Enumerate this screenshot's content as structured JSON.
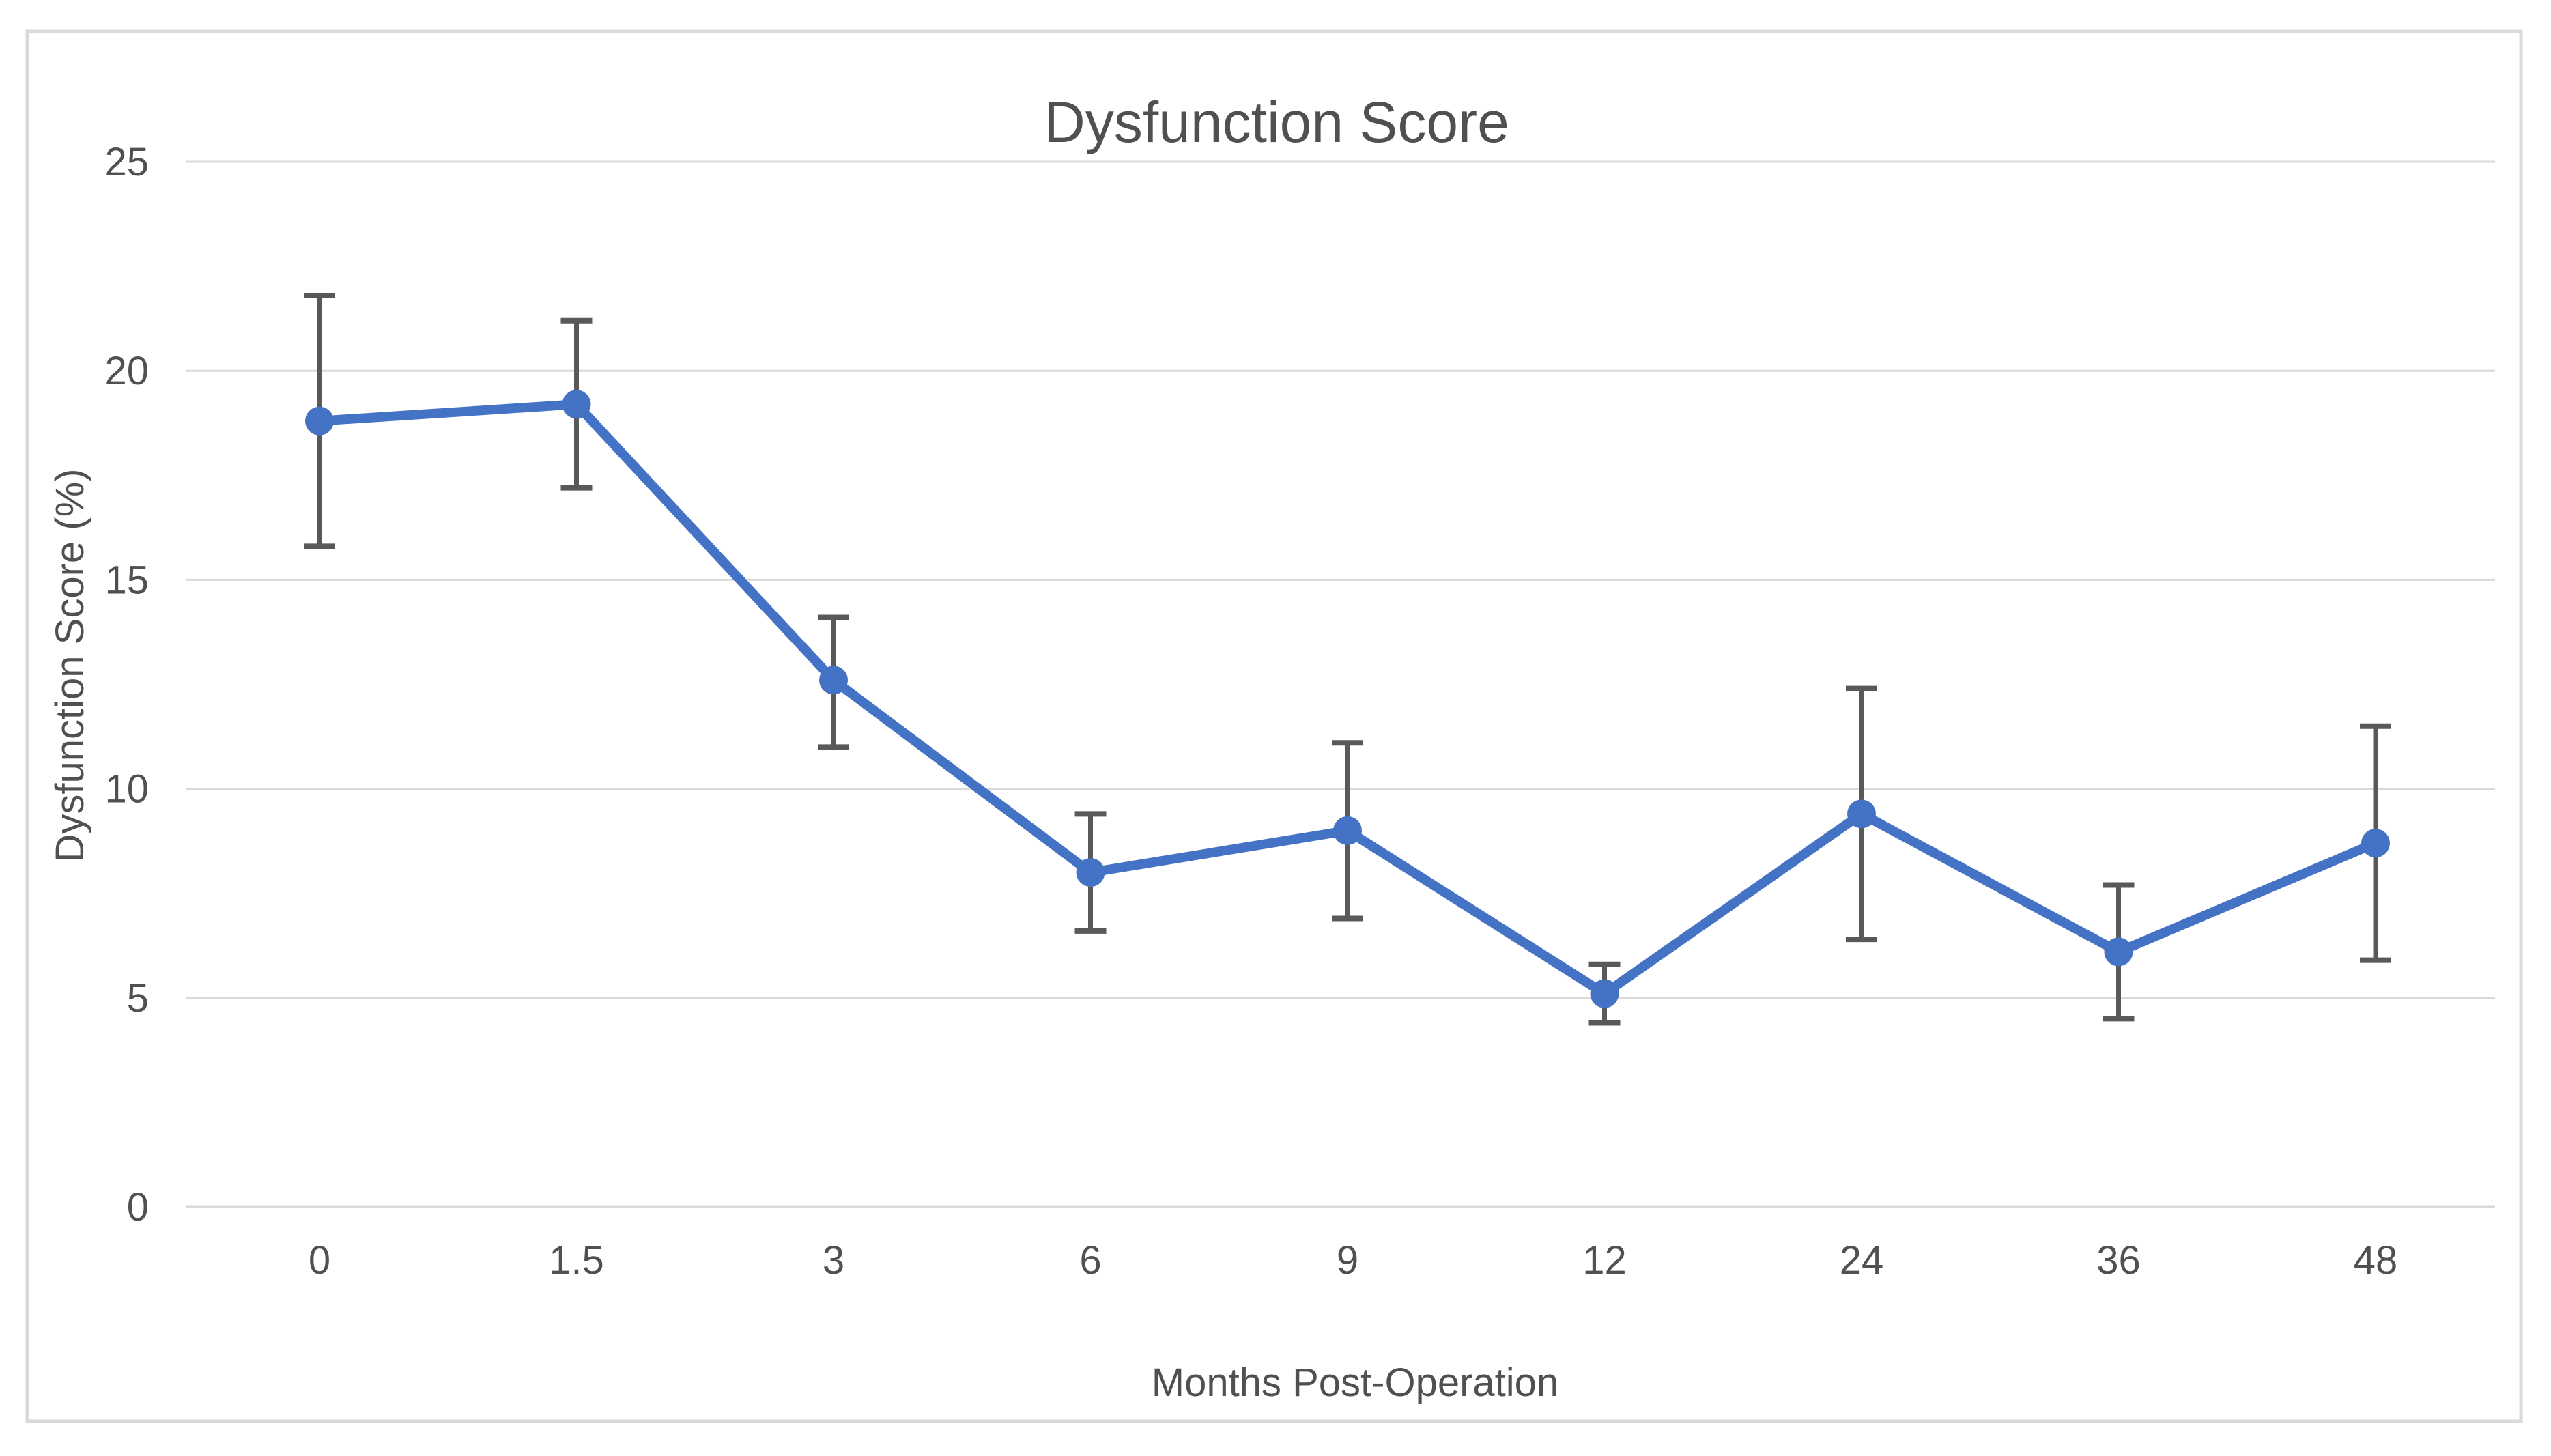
{
  "chart": {
    "title": "Dysfunction Score",
    "x_axis_title": "Months Post-Operation",
    "y_axis_title": "Dysfunction Score (%)"
  },
  "chart_data": {
    "type": "line",
    "title": "Dysfunction Score",
    "xlabel": "Months Post-Operation",
    "ylabel": "Dysfunction Score (%)",
    "categories": [
      "0",
      "1.5",
      "3",
      "6",
      "9",
      "12",
      "24",
      "36",
      "48"
    ],
    "series": [
      {
        "name": "Dysfunction Score",
        "values": [
          18.8,
          19.2,
          12.6,
          8.0,
          9.0,
          5.1,
          9.4,
          6.1,
          8.7
        ],
        "error_upper": [
          21.8,
          21.2,
          14.1,
          9.4,
          11.1,
          5.8,
          12.4,
          7.7,
          11.5
        ],
        "error_lower": [
          15.8,
          17.2,
          11.0,
          6.6,
          6.9,
          4.4,
          6.4,
          4.5,
          5.9
        ]
      }
    ],
    "y_ticks": [
      0,
      5,
      10,
      15,
      20,
      25
    ],
    "ylim": [
      0,
      25
    ],
    "grid": true,
    "legend": false,
    "marker": "circle",
    "colors": {
      "line": "#4472C4",
      "marker": "#4472C4",
      "error_bar": "#595959",
      "gridline": "#D9D9D9",
      "border": "#D9D9D9",
      "text": "#505050",
      "background": "#FFFFFF"
    }
  }
}
